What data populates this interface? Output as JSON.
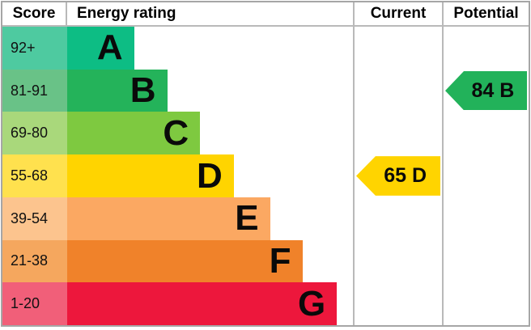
{
  "header": {
    "score": "Score",
    "energy_rating": "Energy rating",
    "current": "Current",
    "potential": "Potential"
  },
  "bands": [
    {
      "letter": "A",
      "score": "92+",
      "color": "#0dbd84",
      "tint": "#4ecaa0",
      "width_pct": 23.4
    },
    {
      "letter": "B",
      "score": "81-91",
      "color": "#24b35a",
      "tint": "#69c287",
      "width_pct": 35.0
    },
    {
      "letter": "C",
      "score": "69-80",
      "color": "#7ec940",
      "tint": "#a9d87b",
      "width_pct": 46.5
    },
    {
      "letter": "D",
      "score": "55-68",
      "color": "#ffd400",
      "tint": "#ffe14e",
      "width_pct": 58.3
    },
    {
      "letter": "E",
      "score": "39-54",
      "color": "#fba862",
      "tint": "#fcc48e",
      "width_pct": 71.0
    },
    {
      "letter": "F",
      "score": "21-38",
      "color": "#f0822a",
      "tint": "#f5a75e",
      "width_pct": 82.3
    },
    {
      "letter": "G",
      "score": "1-20",
      "color": "#ed173c",
      "tint": "#f15f79",
      "width_pct": 94.4
    }
  ],
  "current": {
    "label": "65 D",
    "value": 65,
    "band": "D",
    "color": "#ffd400"
  },
  "potential": {
    "label": "84 B",
    "value": 84,
    "band": "B",
    "color": "#22b25a"
  },
  "chart_data": {
    "type": "bar",
    "orientation": "horizontal",
    "title": "Energy rating",
    "categories": [
      "A",
      "B",
      "C",
      "D",
      "E",
      "F",
      "G"
    ],
    "category_score_ranges": [
      "92+",
      "81-91",
      "69-80",
      "55-68",
      "39-54",
      "21-38",
      "1-20"
    ],
    "values": [
      23.4,
      35.0,
      46.5,
      58.3,
      71.0,
      82.3,
      94.4
    ],
    "band_colors": [
      "#0dbd84",
      "#24b35a",
      "#7ec940",
      "#ffd400",
      "#fba862",
      "#f0822a",
      "#ed173c"
    ],
    "annotations": [
      {
        "column": "Current",
        "label": "65 D",
        "value": 65,
        "band": "D"
      },
      {
        "column": "Potential",
        "label": "84 B",
        "value": 84,
        "band": "B"
      }
    ],
    "legend_position": "none",
    "grid": false
  }
}
